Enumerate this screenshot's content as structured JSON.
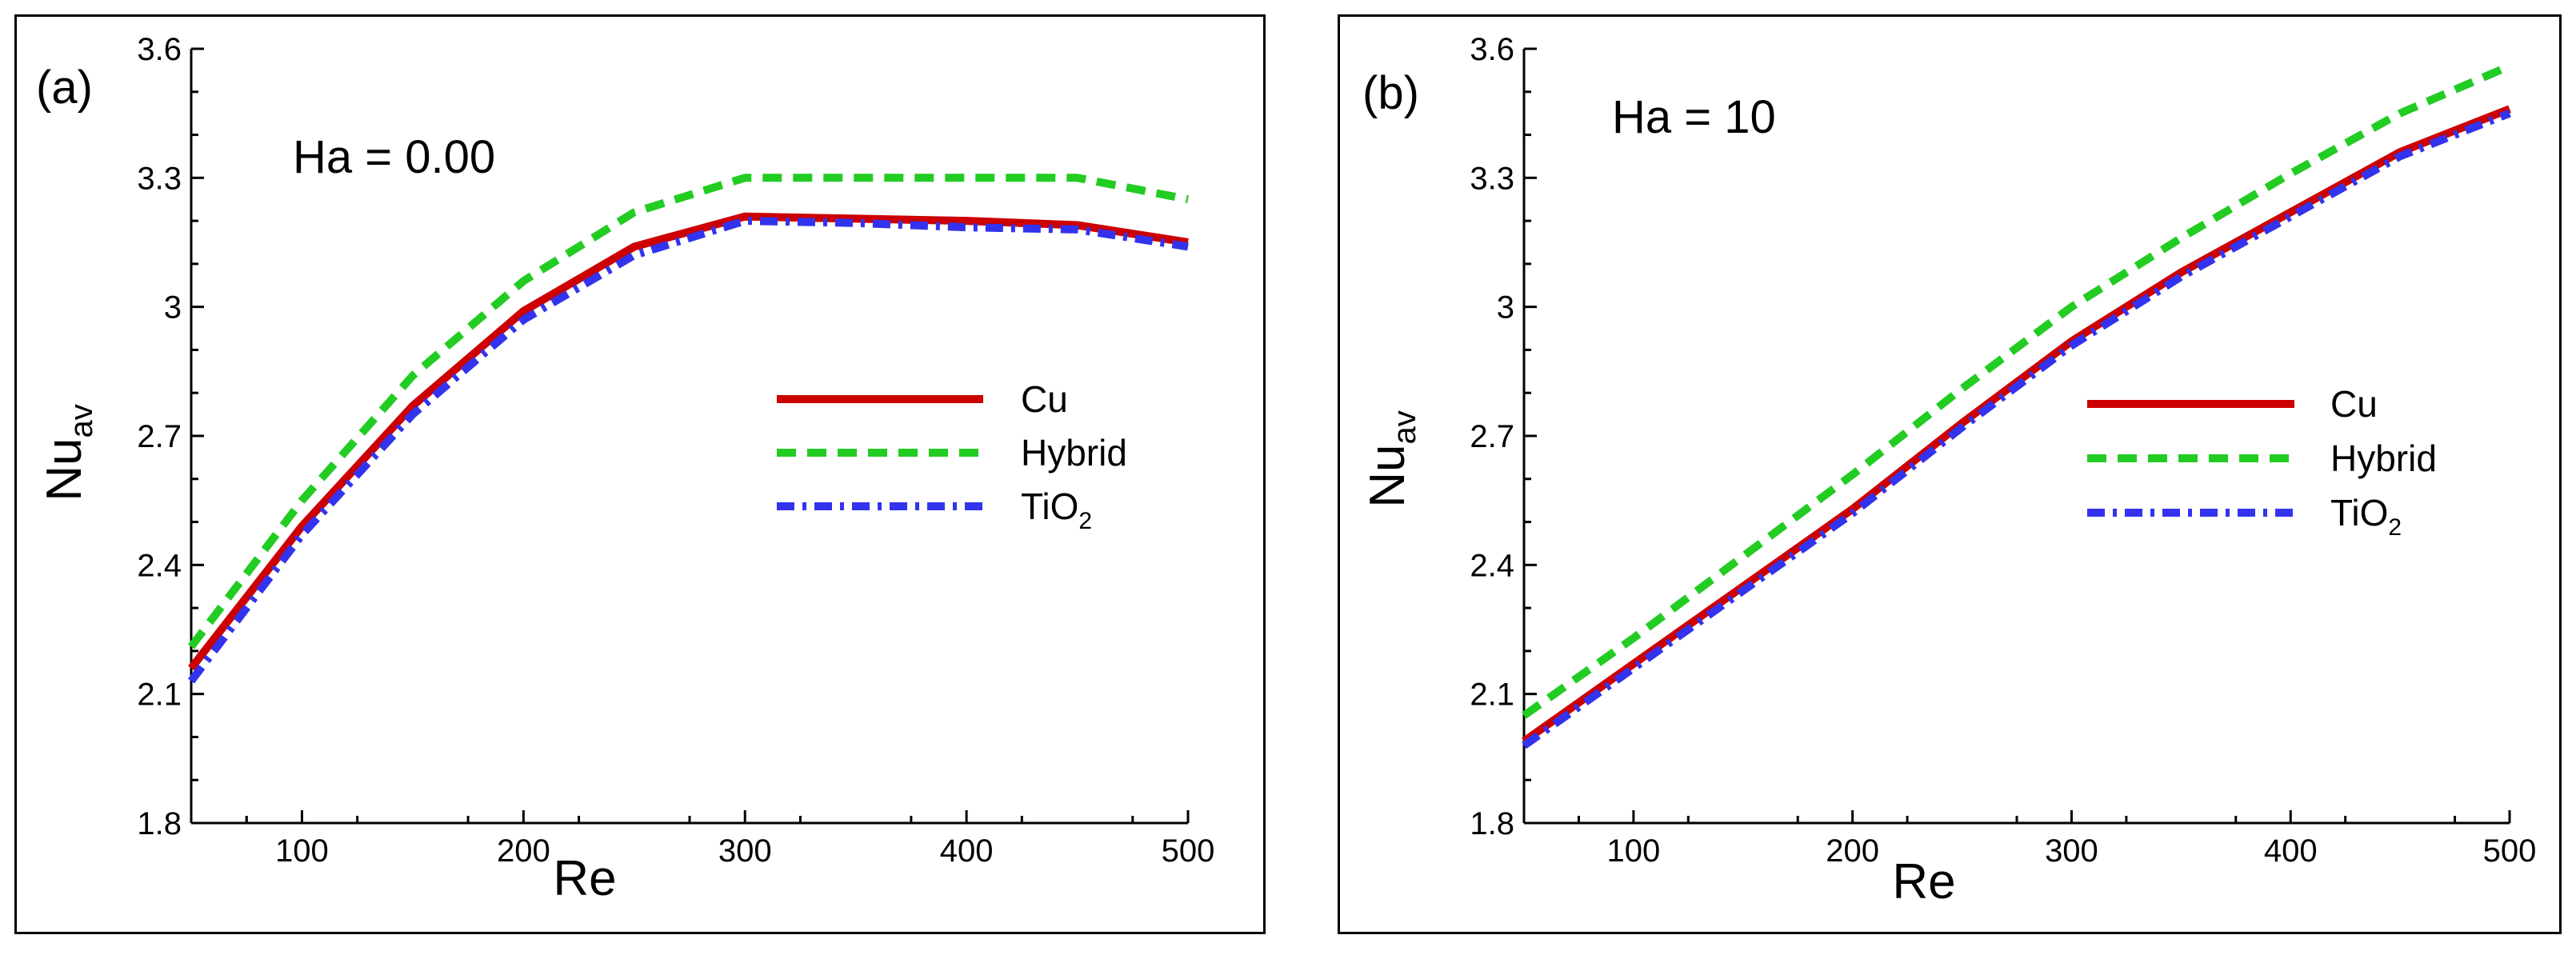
{
  "chart_data": [
    {
      "type": "line",
      "panel_label": "(a)",
      "annotation": "Ha = 0.00",
      "xlabel": "Re",
      "ylabel": "Nu",
      "ylabel_sub": "av",
      "xlim": [
        50,
        500
      ],
      "ylim": [
        1.8,
        3.6
      ],
      "xticks": [
        100,
        200,
        300,
        400,
        500
      ],
      "yticks": [
        1.8,
        2.1,
        2.4,
        2.7,
        3,
        3.3,
        3.6
      ],
      "yticklabels": [
        "1.8",
        "2.1",
        "2.4",
        "2.7",
        "3",
        "3.3",
        "3.6"
      ],
      "x": [
        50,
        100,
        150,
        200,
        250,
        300,
        350,
        400,
        450,
        500
      ],
      "series": [
        {
          "name": "Cu",
          "values": [
            2.16,
            2.49,
            2.77,
            2.99,
            3.14,
            3.21,
            3.205,
            3.2,
            3.19,
            3.15
          ],
          "color": "#cc0000",
          "dash": "solid"
        },
        {
          "name": "Hybrid",
          "values": [
            2.21,
            2.55,
            2.84,
            3.06,
            3.22,
            3.3,
            3.3,
            3.3,
            3.3,
            3.25
          ],
          "color": "#22cc22",
          "dash": "dashed"
        },
        {
          "name": "TiO",
          "name_sub": "2",
          "values": [
            2.13,
            2.47,
            2.75,
            2.97,
            3.12,
            3.2,
            3.195,
            3.185,
            3.18,
            3.14
          ],
          "color": "#3333ee",
          "dash": "dashdot"
        }
      ],
      "legend_position": "right"
    },
    {
      "type": "line",
      "panel_label": "(b)",
      "annotation": "Ha = 10",
      "xlabel": "Re",
      "ylabel": "Nu",
      "ylabel_sub": "av",
      "xlim": [
        50,
        500
      ],
      "ylim": [
        1.8,
        3.6
      ],
      "xticks": [
        100,
        200,
        300,
        400,
        500
      ],
      "yticks": [
        1.8,
        2.1,
        2.4,
        2.7,
        3,
        3.3,
        3.6
      ],
      "yticklabels": [
        "1.8",
        "2.1",
        "2.4",
        "2.7",
        "3",
        "3.3",
        "3.6"
      ],
      "x": [
        50,
        100,
        150,
        200,
        250,
        300,
        350,
        400,
        450,
        500
      ],
      "series": [
        {
          "name": "Cu",
          "values": [
            1.99,
            2.17,
            2.35,
            2.53,
            2.73,
            2.92,
            3.08,
            3.22,
            3.36,
            3.46
          ],
          "color": "#cc0000",
          "dash": "solid"
        },
        {
          "name": "Hybrid",
          "values": [
            2.05,
            2.23,
            2.42,
            2.61,
            2.81,
            3.0,
            3.16,
            3.31,
            3.45,
            3.56
          ],
          "color": "#22cc22",
          "dash": "dashed"
        },
        {
          "name": "TiO",
          "name_sub": "2",
          "values": [
            1.98,
            2.16,
            2.34,
            2.52,
            2.72,
            2.91,
            3.07,
            3.21,
            3.35,
            3.45
          ],
          "color": "#3333ee",
          "dash": "dashdot"
        }
      ],
      "legend_position": "right"
    }
  ]
}
